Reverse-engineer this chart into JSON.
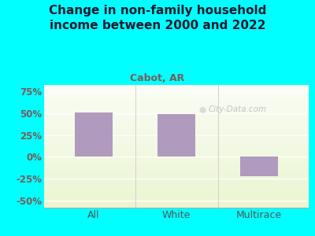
{
  "categories": [
    "All",
    "White",
    "Multirace"
  ],
  "values": [
    51,
    49,
    -22
  ],
  "bar_color": "#b09abe",
  "title": "Change in non-family household\nincome between 2000 and 2022",
  "subtitle": "Cabot, AR",
  "title_color": "#1a1a2e",
  "subtitle_color": "#7a5c58",
  "ytick_labels": [
    "-50%",
    "-25%",
    "0%",
    "25%",
    "50%",
    "75%"
  ],
  "ytick_values": [
    -50,
    -25,
    0,
    25,
    50,
    75
  ],
  "ytick_color": "#7a5c58",
  "xtick_color": "#555555",
  "ylim": [
    -58,
    82
  ],
  "outer_bg": "#00ffff",
  "plot_bg_color": "#e8f5e0",
  "watermark": "City-Data.com",
  "bar_width": 0.45,
  "title_fontsize": 11,
  "subtitle_fontsize": 9
}
